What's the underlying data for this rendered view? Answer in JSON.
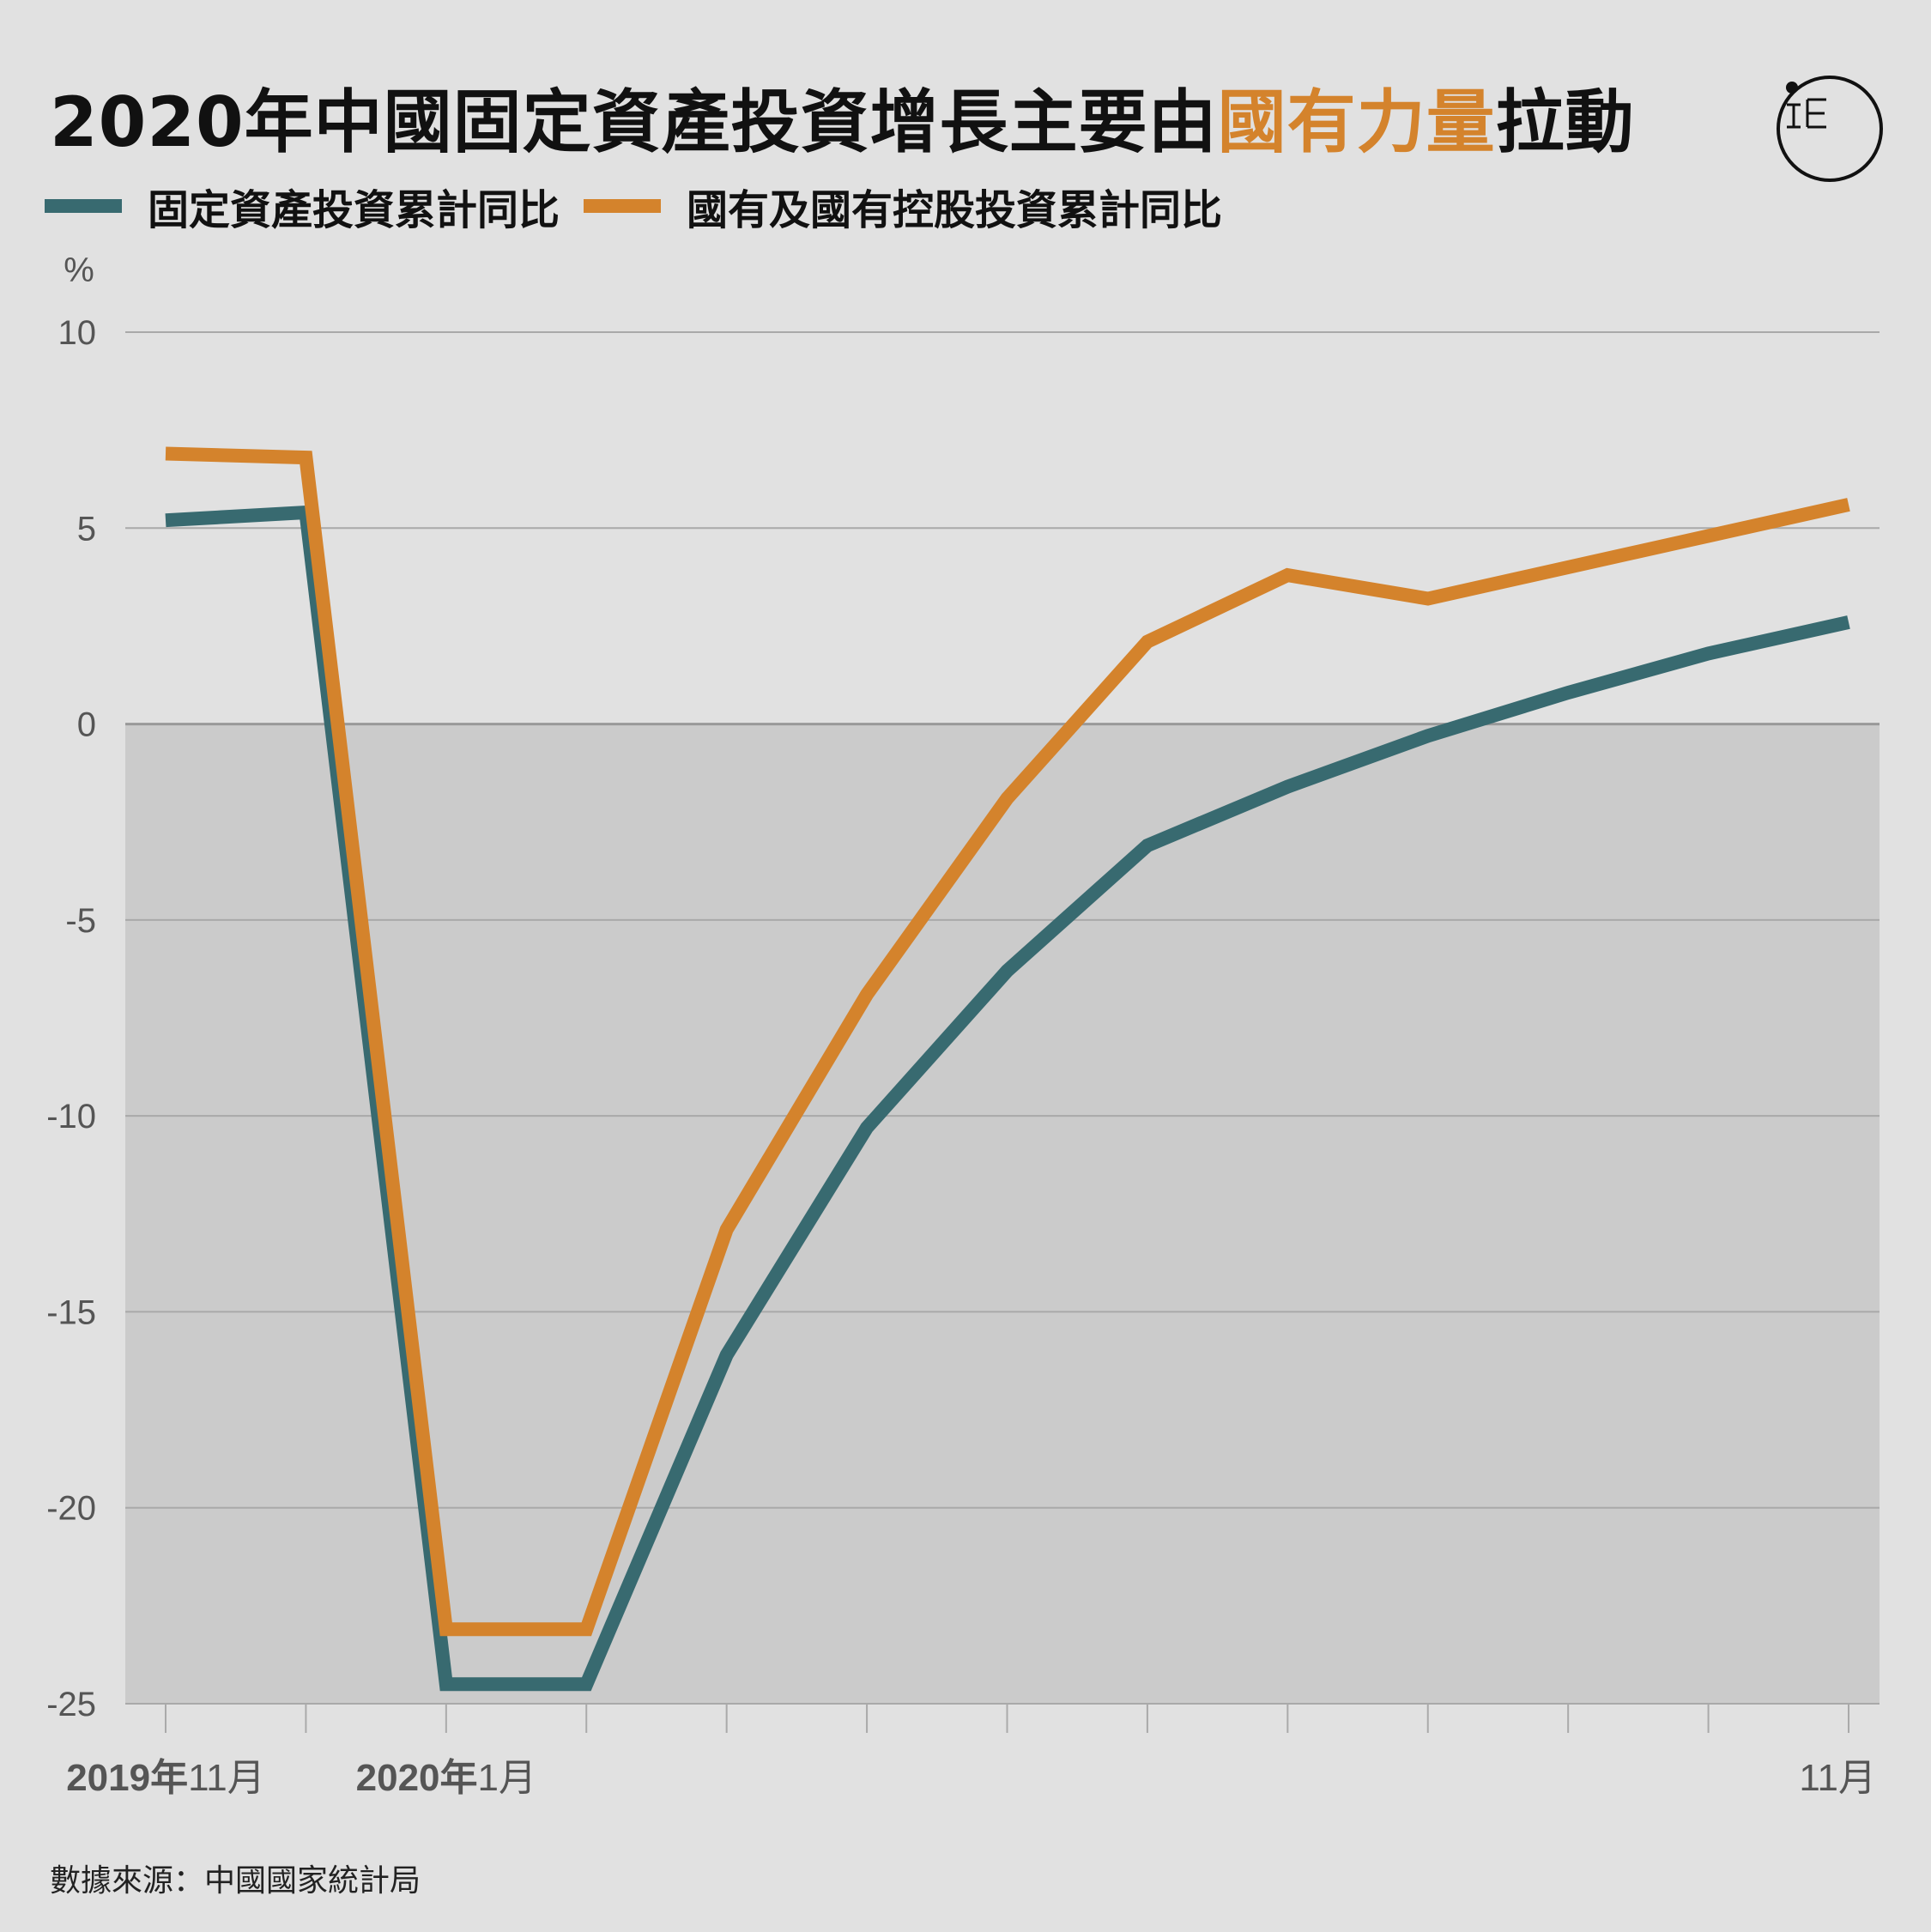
{
  "title": {
    "prefix": "2020年中國固定資產投資增長主要由",
    "highlight": "國有力量",
    "suffix": "拉動"
  },
  "logo": {
    "icon": "initium-logo-icon"
  },
  "source": "數據來源：中國國家統計局",
  "colors": {
    "fixed_asset": "#386a70",
    "state_owned": "#d4832c",
    "background": "#e1e1e1",
    "negative_area": "#cbcbcb",
    "grid": "#a9a9a9",
    "title_highlight": "#d4832c"
  },
  "chart_data": {
    "type": "line",
    "ylabel": "%",
    "ylim": [
      -25,
      10
    ],
    "yticks": [
      10,
      5,
      0,
      -5,
      -10,
      -15,
      -20,
      -25
    ],
    "grid": true,
    "negative_shading": true,
    "legend_placement": "top-left",
    "x": [
      "2019-11",
      "2019-12",
      "2020-01",
      "2020-02",
      "2020-03",
      "2020-04",
      "2020-05",
      "2020-06",
      "2020-07",
      "2020-08",
      "2020-09",
      "2020-10",
      "2020-11"
    ],
    "x_labels": [
      {
        "index": 0,
        "year": "2019年",
        "month": "11月"
      },
      {
        "index": 2,
        "year": "2020年",
        "month": "1月"
      },
      {
        "index": 12,
        "year": "",
        "month": "11月"
      }
    ],
    "series": [
      {
        "name": "固定資產投資累計同比",
        "color": "#386a70",
        "values": [
          5.2,
          5.4,
          -24.5,
          -24.5,
          -16.1,
          -10.3,
          -6.3,
          -3.1,
          -1.6,
          -0.3,
          0.8,
          1.8,
          2.6
        ]
      },
      {
        "name": "國有及國有控股投資累計同比",
        "color": "#d4832c",
        "values": [
          6.9,
          6.8,
          -23.1,
          -23.1,
          -12.9,
          -6.9,
          -1.9,
          2.1,
          3.8,
          3.2,
          4.0,
          4.8,
          5.6
        ]
      }
    ]
  }
}
